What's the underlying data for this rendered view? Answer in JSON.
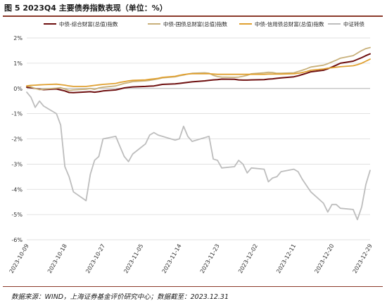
{
  "header": {
    "title": "图 5 2023Q4 主要债券指数表现（单位：%）"
  },
  "footer": {
    "source": "数据来源：WIND，上海证券基金评价研究中心；数据截至：2023.12.31"
  },
  "colors": {
    "rule": "#8b3a2a",
    "grid": "#d9d9d9",
    "zero_line": "#bfbfbf"
  },
  "chart_data": {
    "type": "line",
    "ylim": [
      -6,
      2
    ],
    "y_ticks": [
      2,
      1,
      0,
      -1,
      -2,
      -3,
      -4,
      -5,
      -6
    ],
    "y_tick_labels": [
      "2%",
      "1%",
      "0%",
      "-1%",
      "-2%",
      "-3%",
      "-4%",
      "-5%",
      "-6%"
    ],
    "x_tick_labels": [
      "2023-10-09",
      "2023-10-18",
      "2023-10-27",
      "2023-11-05",
      "2023-11-14",
      "2023-11-23",
      "2023-12-02",
      "2023-12-11",
      "2023-12-20",
      "2023-12-29"
    ],
    "grid": "horizontal",
    "legend_position": "top",
    "series": [
      {
        "name": "中债-综合财富(总值)指数",
        "color": "#6e0f0f",
        "width": 2,
        "points": [
          [
            "2023-10-09",
            0.05
          ],
          [
            "2023-10-10",
            0.03
          ],
          [
            "2023-10-11",
            0.0
          ],
          [
            "2023-10-12",
            -0.03
          ],
          [
            "2023-10-13",
            -0.05
          ],
          [
            "2023-10-16",
            -0.02
          ],
          [
            "2023-10-17",
            -0.06
          ],
          [
            "2023-10-18",
            -0.1
          ],
          [
            "2023-10-19",
            -0.16
          ],
          [
            "2023-10-20",
            -0.17
          ],
          [
            "2023-10-23",
            -0.14
          ],
          [
            "2023-10-24",
            -0.13
          ],
          [
            "2023-10-25",
            -0.15
          ],
          [
            "2023-10-26",
            -0.13
          ],
          [
            "2023-10-27",
            -0.1
          ],
          [
            "2023-10-30",
            -0.06
          ],
          [
            "2023-10-31",
            -0.02
          ],
          [
            "2023-11-01",
            0.02
          ],
          [
            "2023-11-02",
            0.04
          ],
          [
            "2023-11-03",
            0.06
          ],
          [
            "2023-11-06",
            0.08
          ],
          [
            "2023-11-07",
            0.09
          ],
          [
            "2023-11-08",
            0.1
          ],
          [
            "2023-11-09",
            0.13
          ],
          [
            "2023-11-10",
            0.16
          ],
          [
            "2023-11-13",
            0.18
          ],
          [
            "2023-11-14",
            0.2
          ],
          [
            "2023-11-15",
            0.22
          ],
          [
            "2023-11-16",
            0.24
          ],
          [
            "2023-11-17",
            0.26
          ],
          [
            "2023-11-20",
            0.3
          ],
          [
            "2023-11-21",
            0.32
          ],
          [
            "2023-11-22",
            0.34
          ],
          [
            "2023-11-23",
            0.35
          ],
          [
            "2023-11-24",
            0.37
          ],
          [
            "2023-11-27",
            0.36
          ],
          [
            "2023-11-28",
            0.34
          ],
          [
            "2023-11-29",
            0.33
          ],
          [
            "2023-11-30",
            0.33
          ],
          [
            "2023-12-01",
            0.34
          ],
          [
            "2023-12-04",
            0.35
          ],
          [
            "2023-12-05",
            0.37
          ],
          [
            "2023-12-06",
            0.38
          ],
          [
            "2023-12-07",
            0.4
          ],
          [
            "2023-12-08",
            0.42
          ],
          [
            "2023-12-11",
            0.46
          ],
          [
            "2023-12-12",
            0.5
          ],
          [
            "2023-12-13",
            0.55
          ],
          [
            "2023-12-14",
            0.6
          ],
          [
            "2023-12-15",
            0.66
          ],
          [
            "2023-12-18",
            0.72
          ],
          [
            "2023-12-19",
            0.78
          ],
          [
            "2023-12-20",
            0.85
          ],
          [
            "2023-12-21",
            0.92
          ],
          [
            "2023-12-22",
            1.0
          ],
          [
            "2023-12-25",
            1.08
          ],
          [
            "2023-12-26",
            1.15
          ],
          [
            "2023-12-27",
            1.22
          ],
          [
            "2023-12-28",
            1.3
          ],
          [
            "2023-12-29",
            1.37
          ]
        ]
      },
      {
        "name": "中债-国债总财富(总值)指数",
        "color": "#c8b07a",
        "width": 1.8,
        "points": [
          [
            "2023-10-09",
            0.1
          ],
          [
            "2023-10-10",
            0.06
          ],
          [
            "2023-10-11",
            0.0
          ],
          [
            "2023-10-12",
            -0.05
          ],
          [
            "2023-10-13",
            -0.03
          ],
          [
            "2023-10-16",
            0.01
          ],
          [
            "2023-10-17",
            0.03
          ],
          [
            "2023-10-18",
            -0.02
          ],
          [
            "2023-10-19",
            -0.08
          ],
          [
            "2023-10-20",
            -0.06
          ],
          [
            "2023-10-23",
            -0.03
          ],
          [
            "2023-10-24",
            0.0
          ],
          [
            "2023-10-25",
            -0.04
          ],
          [
            "2023-10-26",
            0.02
          ],
          [
            "2023-10-27",
            0.05
          ],
          [
            "2023-10-30",
            0.1
          ],
          [
            "2023-10-31",
            0.15
          ],
          [
            "2023-11-01",
            0.2
          ],
          [
            "2023-11-02",
            0.23
          ],
          [
            "2023-11-03",
            0.27
          ],
          [
            "2023-11-06",
            0.3
          ],
          [
            "2023-11-07",
            0.32
          ],
          [
            "2023-11-08",
            0.35
          ],
          [
            "2023-11-09",
            0.38
          ],
          [
            "2023-11-10",
            0.42
          ],
          [
            "2023-11-13",
            0.46
          ],
          [
            "2023-11-14",
            0.5
          ],
          [
            "2023-11-15",
            0.53
          ],
          [
            "2023-11-16",
            0.57
          ],
          [
            "2023-11-17",
            0.6
          ],
          [
            "2023-11-20",
            0.62
          ],
          [
            "2023-11-21",
            0.6
          ],
          [
            "2023-11-22",
            0.52
          ],
          [
            "2023-11-23",
            0.47
          ],
          [
            "2023-11-24",
            0.45
          ],
          [
            "2023-11-27",
            0.44
          ],
          [
            "2023-11-28",
            0.45
          ],
          [
            "2023-11-29",
            0.48
          ],
          [
            "2023-11-30",
            0.52
          ],
          [
            "2023-12-01",
            0.58
          ],
          [
            "2023-12-04",
            0.62
          ],
          [
            "2023-12-05",
            0.64
          ],
          [
            "2023-12-06",
            0.63
          ],
          [
            "2023-12-07",
            0.6
          ],
          [
            "2023-12-08",
            0.6
          ],
          [
            "2023-12-11",
            0.62
          ],
          [
            "2023-12-12",
            0.67
          ],
          [
            "2023-12-13",
            0.72
          ],
          [
            "2023-12-14",
            0.78
          ],
          [
            "2023-12-15",
            0.85
          ],
          [
            "2023-12-18",
            0.92
          ],
          [
            "2023-12-19",
            0.98
          ],
          [
            "2023-12-20",
            1.05
          ],
          [
            "2023-12-21",
            1.12
          ],
          [
            "2023-12-22",
            1.2
          ],
          [
            "2023-12-25",
            1.3
          ],
          [
            "2023-12-26",
            1.4
          ],
          [
            "2023-12-27",
            1.5
          ],
          [
            "2023-12-28",
            1.58
          ],
          [
            "2023-12-29",
            1.62
          ]
        ]
      },
      {
        "name": "中债-信用债总财富(总值)指数",
        "color": "#e0a030",
        "width": 1.8,
        "points": [
          [
            "2023-10-09",
            0.1
          ],
          [
            "2023-10-10",
            0.12
          ],
          [
            "2023-10-11",
            0.13
          ],
          [
            "2023-10-12",
            0.14
          ],
          [
            "2023-10-13",
            0.15
          ],
          [
            "2023-10-16",
            0.17
          ],
          [
            "2023-10-17",
            0.15
          ],
          [
            "2023-10-18",
            0.13
          ],
          [
            "2023-10-19",
            0.1
          ],
          [
            "2023-10-20",
            0.08
          ],
          [
            "2023-10-23",
            0.08
          ],
          [
            "2023-10-24",
            0.1
          ],
          [
            "2023-10-25",
            0.12
          ],
          [
            "2023-10-26",
            0.14
          ],
          [
            "2023-10-27",
            0.16
          ],
          [
            "2023-10-30",
            0.2
          ],
          [
            "2023-10-31",
            0.24
          ],
          [
            "2023-11-01",
            0.27
          ],
          [
            "2023-11-02",
            0.3
          ],
          [
            "2023-11-03",
            0.32
          ],
          [
            "2023-11-06",
            0.34
          ],
          [
            "2023-11-07",
            0.36
          ],
          [
            "2023-11-08",
            0.38
          ],
          [
            "2023-11-09",
            0.4
          ],
          [
            "2023-11-10",
            0.44
          ],
          [
            "2023-11-13",
            0.48
          ],
          [
            "2023-11-14",
            0.52
          ],
          [
            "2023-11-15",
            0.55
          ],
          [
            "2023-11-16",
            0.57
          ],
          [
            "2023-11-17",
            0.58
          ],
          [
            "2023-11-20",
            0.58
          ],
          [
            "2023-11-21",
            0.58
          ],
          [
            "2023-11-22",
            0.57
          ],
          [
            "2023-11-23",
            0.56
          ],
          [
            "2023-11-24",
            0.56
          ],
          [
            "2023-11-27",
            0.56
          ],
          [
            "2023-11-28",
            0.56
          ],
          [
            "2023-11-29",
            0.56
          ],
          [
            "2023-11-30",
            0.56
          ],
          [
            "2023-12-01",
            0.56
          ],
          [
            "2023-12-04",
            0.56
          ],
          [
            "2023-12-05",
            0.57
          ],
          [
            "2023-12-06",
            0.57
          ],
          [
            "2023-12-07",
            0.57
          ],
          [
            "2023-12-08",
            0.57
          ],
          [
            "2023-12-11",
            0.58
          ],
          [
            "2023-12-12",
            0.6
          ],
          [
            "2023-12-13",
            0.63
          ],
          [
            "2023-12-14",
            0.67
          ],
          [
            "2023-12-15",
            0.72
          ],
          [
            "2023-12-18",
            0.77
          ],
          [
            "2023-12-19",
            0.8
          ],
          [
            "2023-12-20",
            0.82
          ],
          [
            "2023-12-21",
            0.84
          ],
          [
            "2023-12-22",
            0.86
          ],
          [
            "2023-12-25",
            0.9
          ],
          [
            "2023-12-26",
            0.94
          ],
          [
            "2023-12-27",
            1.0
          ],
          [
            "2023-12-28",
            1.08
          ],
          [
            "2023-12-29",
            1.16
          ]
        ]
      },
      {
        "name": "中证转债",
        "color": "#bdbdbd",
        "width": 1.8,
        "points": [
          [
            "2023-10-09",
            -0.15
          ],
          [
            "2023-10-10",
            -0.35
          ],
          [
            "2023-10-11",
            -0.75
          ],
          [
            "2023-10-12",
            -0.5
          ],
          [
            "2023-10-13",
            -0.7
          ],
          [
            "2023-10-16",
            -1.0
          ],
          [
            "2023-10-17",
            -1.45
          ],
          [
            "2023-10-18",
            -3.1
          ],
          [
            "2023-10-19",
            -3.5
          ],
          [
            "2023-10-20",
            -4.1
          ],
          [
            "2023-10-23",
            -4.45
          ],
          [
            "2023-10-24",
            -3.4
          ],
          [
            "2023-10-25",
            -2.85
          ],
          [
            "2023-10-26",
            -2.7
          ],
          [
            "2023-10-27",
            -2.0
          ],
          [
            "2023-10-30",
            -1.9
          ],
          [
            "2023-10-31",
            -2.3
          ],
          [
            "2023-11-01",
            -2.7
          ],
          [
            "2023-11-02",
            -2.9
          ],
          [
            "2023-11-03",
            -2.6
          ],
          [
            "2023-11-06",
            -2.2
          ],
          [
            "2023-11-07",
            -1.85
          ],
          [
            "2023-11-08",
            -1.75
          ],
          [
            "2023-11-09",
            -1.85
          ],
          [
            "2023-11-10",
            -1.9
          ],
          [
            "2023-11-13",
            -2.05
          ],
          [
            "2023-11-14",
            -2.0
          ],
          [
            "2023-11-15",
            -1.5
          ],
          [
            "2023-11-16",
            -1.9
          ],
          [
            "2023-11-17",
            -2.1
          ],
          [
            "2023-11-20",
            -1.95
          ],
          [
            "2023-11-21",
            -1.9
          ],
          [
            "2023-11-22",
            -2.8
          ],
          [
            "2023-11-23",
            -2.85
          ],
          [
            "2023-11-24",
            -3.15
          ],
          [
            "2023-11-27",
            -3.1
          ],
          [
            "2023-11-28",
            -2.85
          ],
          [
            "2023-11-29",
            -3.0
          ],
          [
            "2023-11-30",
            -3.35
          ],
          [
            "2023-12-01",
            -3.15
          ],
          [
            "2023-12-04",
            -3.2
          ],
          [
            "2023-12-05",
            -3.7
          ],
          [
            "2023-12-06",
            -3.55
          ],
          [
            "2023-12-07",
            -3.5
          ],
          [
            "2023-12-08",
            -3.3
          ],
          [
            "2023-12-11",
            -3.2
          ],
          [
            "2023-12-12",
            -3.3
          ],
          [
            "2023-12-13",
            -3.6
          ],
          [
            "2023-12-14",
            -3.85
          ],
          [
            "2023-12-15",
            -4.1
          ],
          [
            "2023-12-18",
            -4.55
          ],
          [
            "2023-12-19",
            -4.9
          ],
          [
            "2023-12-20",
            -4.6
          ],
          [
            "2023-12-21",
            -4.6
          ],
          [
            "2023-12-22",
            -4.75
          ],
          [
            "2023-12-25",
            -4.8
          ],
          [
            "2023-12-26",
            -5.2
          ],
          [
            "2023-12-27",
            -4.7
          ],
          [
            "2023-12-28",
            -3.8
          ],
          [
            "2023-12-29",
            -3.25
          ]
        ]
      }
    ]
  }
}
